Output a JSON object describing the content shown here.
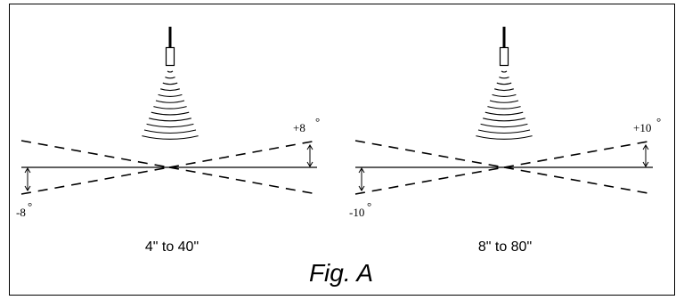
{
  "figure": {
    "caption": "Fig. A",
    "panels": [
      {
        "range_label": "4\" to 40\"",
        "angle_plus": "+8",
        "angle_minus": "-8",
        "degree_symbol": "°"
      },
      {
        "range_label": "8\" to 80\"",
        "angle_plus": "+10",
        "angle_minus": "-10",
        "degree_symbol": "°"
      }
    ]
  }
}
